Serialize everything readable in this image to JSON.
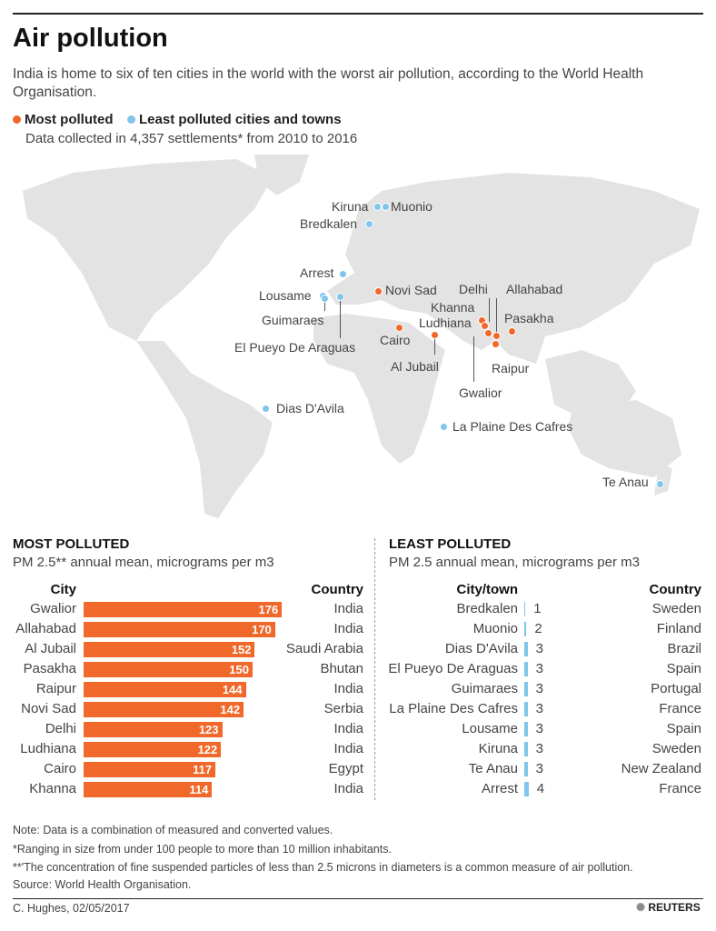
{
  "title": "Air pollution",
  "subtitle": "India is home to six of ten cities in the world with the worst air pollution, according to the World Health Organisation.",
  "legend": {
    "most": "Most polluted",
    "least": "Least polluted cities and towns",
    "most_color": "#f0682a",
    "least_color": "#7fc6ea"
  },
  "data_note": "Data collected in 4,357 settlements* from 2010 to 2016",
  "map": {
    "most": [
      "Novi Sad",
      "Cairo",
      "Al Jubail",
      "Delhi",
      "Khanna",
      "Ludhiana",
      "Allahabad",
      "Gwalior",
      "Raipur",
      "Pasakha"
    ],
    "least": [
      "Kiruna",
      "Muonio",
      "Bredkalen",
      "Arrest",
      "Lousame",
      "Guimaraes",
      "El Pueyo De Araguas",
      "Dias D'Avila",
      "La Plaine Des Cafres",
      "Te Anau"
    ]
  },
  "chart_data": [
    {
      "type": "bar",
      "title": "MOST POLLUTED",
      "subtitle": "PM 2.5** annual mean, micrograms per m3",
      "col_city": "City",
      "col_country": "Country",
      "categories": [
        "Gwalior",
        "Allahabad",
        "Al Jubail",
        "Pasakha",
        "Raipur",
        "Novi Sad",
        "Delhi",
        "Ludhiana",
        "Cairo",
        "Khanna"
      ],
      "values": [
        176,
        170,
        152,
        150,
        144,
        142,
        123,
        122,
        117,
        114
      ],
      "countries": [
        "India",
        "India",
        "Saudi Arabia",
        "Bhutan",
        "India",
        "Serbia",
        "India",
        "India",
        "Egypt",
        "India"
      ],
      "color": "#f0682a"
    },
    {
      "type": "bar",
      "title": "LEAST POLLUTED",
      "subtitle": "PM 2.5 annual mean, micrograms per m3",
      "col_city": "City/town",
      "col_country": "Country",
      "categories": [
        "Bredkalen",
        "Muonio",
        "Dias D'Avila",
        "El Pueyo De Araguas",
        "Guimaraes",
        "La Plaine Des Cafres",
        "Lousame",
        "Kiruna",
        "Te Anau",
        "Arrest"
      ],
      "values": [
        1,
        2,
        3,
        3,
        3,
        3,
        3,
        3,
        3,
        4
      ],
      "countries": [
        "Sweden",
        "Finland",
        "Brazil",
        "Spain",
        "Portugal",
        "France",
        "Spain",
        "Sweden",
        "New Zealand",
        "France"
      ],
      "color": "#7fc6ea"
    }
  ],
  "footer": {
    "note": "Note: Data is a combination of  measured and converted values.",
    "fn1": "*Ranging in size from under 100 people to more than 10 million inhabitants.",
    "fn2": "**'The concentration of fine suspended particles of less than  2.5 microns in diameters is a common measure of air pollution.",
    "source": "Source: World Health Organisation.",
    "credit": "C. Hughes, 02/05/2017",
    "logo": "REUTERS"
  }
}
